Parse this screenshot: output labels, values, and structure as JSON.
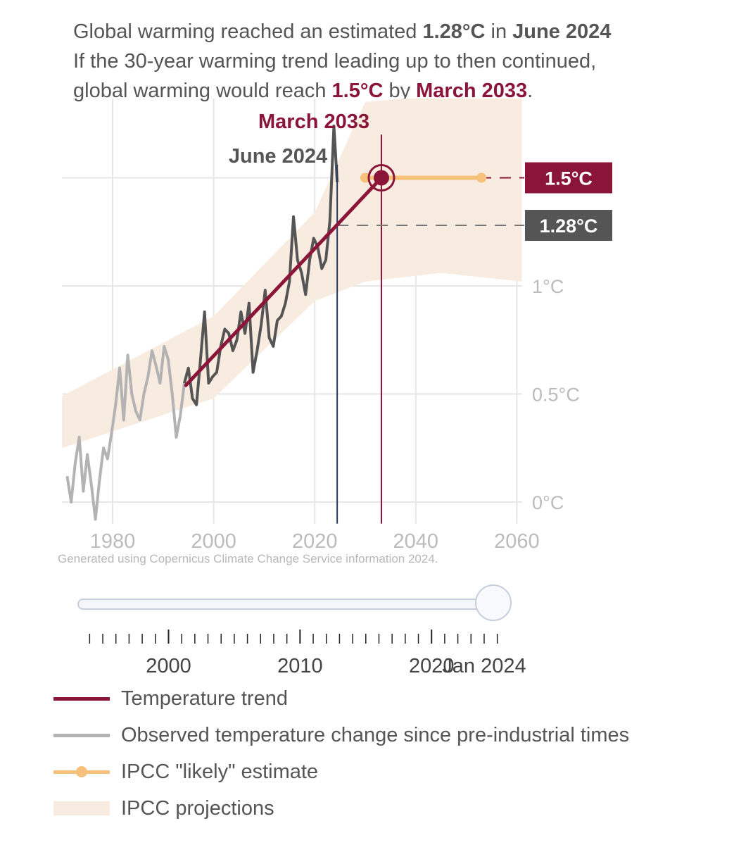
{
  "headline": {
    "l1_a": "Global warming reached an estimated ",
    "l1_b": "1.28°C",
    "l1_c": " in ",
    "l1_d": "June 2024",
    "l2": "If the 30-year warming trend leading up to then continued,",
    "l3_a": "global warming would reach ",
    "l3_b": "1.5°C",
    "l3_c": " by ",
    "l3_d": "March 2033",
    "l3_e": "."
  },
  "chart_data": {
    "type": "line",
    "title": "",
    "xlabel": "",
    "ylabel": "",
    "xlim": [
      1970,
      2061
    ],
    "ylim": [
      -0.1,
      1.92
    ],
    "grid": true,
    "x_ticks": [
      1980,
      2000,
      2020,
      2040,
      2060
    ],
    "y_ticks": [
      {
        "value": 0,
        "label": "0°C"
      },
      {
        "value": 0.5,
        "label": "0.5°C"
      },
      {
        "value": 1.0,
        "label": "1°C"
      }
    ],
    "annotations": {
      "current_date_label": "June 2024",
      "current_date_x": 2024.45,
      "target_date_label": "March 2033",
      "target_date_x": 2033.2,
      "current_value_label": "1.28°C",
      "current_value": 1.28,
      "target_value_label": "1.5°C",
      "target_value": 1.5
    },
    "series": [
      {
        "name": "Temperature trend",
        "color": "#8b1538",
        "points": [
          [
            1994.5,
            0.54
          ],
          [
            2033.2,
            1.5
          ]
        ]
      },
      {
        "name": "Observed temperature change since pre-industrial times",
        "color": "#b3b3b3",
        "recent_color": "#555555",
        "recent_from": 1994.5,
        "points": [
          [
            1971.0,
            0.12
          ],
          [
            1971.8,
            0.0
          ],
          [
            1972.6,
            0.18
          ],
          [
            1973.4,
            0.3
          ],
          [
            1974.2,
            0.05
          ],
          [
            1975.0,
            0.22
          ],
          [
            1975.8,
            0.08
          ],
          [
            1976.6,
            -0.08
          ],
          [
            1977.4,
            0.1
          ],
          [
            1978.2,
            0.25
          ],
          [
            1979.0,
            0.2
          ],
          [
            1979.8,
            0.32
          ],
          [
            1980.6,
            0.45
          ],
          [
            1981.4,
            0.62
          ],
          [
            1982.2,
            0.38
          ],
          [
            1983.0,
            0.68
          ],
          [
            1983.8,
            0.5
          ],
          [
            1984.6,
            0.42
          ],
          [
            1985.4,
            0.38
          ],
          [
            1986.2,
            0.5
          ],
          [
            1987.0,
            0.58
          ],
          [
            1987.8,
            0.7
          ],
          [
            1988.6,
            0.63
          ],
          [
            1989.4,
            0.55
          ],
          [
            1990.2,
            0.72
          ],
          [
            1991.0,
            0.66
          ],
          [
            1991.8,
            0.5
          ],
          [
            1992.6,
            0.3
          ],
          [
            1993.4,
            0.4
          ],
          [
            1994.2,
            0.55
          ],
          [
            1995.0,
            0.62
          ],
          [
            1995.8,
            0.48
          ],
          [
            1996.6,
            0.45
          ],
          [
            1997.4,
            0.66
          ],
          [
            1998.2,
            0.88
          ],
          [
            1999.0,
            0.55
          ],
          [
            1999.8,
            0.58
          ],
          [
            2000.6,
            0.6
          ],
          [
            2001.4,
            0.72
          ],
          [
            2002.2,
            0.8
          ],
          [
            2003.0,
            0.78
          ],
          [
            2003.8,
            0.7
          ],
          [
            2004.6,
            0.75
          ],
          [
            2005.4,
            0.88
          ],
          [
            2006.2,
            0.78
          ],
          [
            2007.0,
            0.92
          ],
          [
            2007.8,
            0.6
          ],
          [
            2008.6,
            0.7
          ],
          [
            2009.4,
            0.82
          ],
          [
            2010.2,
            0.98
          ],
          [
            2011.0,
            0.76
          ],
          [
            2011.8,
            0.72
          ],
          [
            2012.6,
            0.84
          ],
          [
            2013.4,
            0.86
          ],
          [
            2014.2,
            0.92
          ],
          [
            2015.0,
            1.02
          ],
          [
            2015.8,
            1.32
          ],
          [
            2016.6,
            1.12
          ],
          [
            2017.4,
            1.06
          ],
          [
            2018.2,
            0.96
          ],
          [
            2019.0,
            1.12
          ],
          [
            2019.8,
            1.22
          ],
          [
            2020.6,
            1.18
          ],
          [
            2021.4,
            1.08
          ],
          [
            2022.2,
            1.12
          ],
          [
            2023.0,
            1.3
          ],
          [
            2023.8,
            1.74
          ],
          [
            2024.45,
            1.48
          ]
        ]
      },
      {
        "name": "IPCC \"likely\" estimate",
        "color": "#f6c17a",
        "points": [
          [
            2030.0,
            1.5
          ],
          [
            2053.0,
            1.5
          ]
        ]
      },
      {
        "name": "IPCC projections",
        "color": "#f8ebe0",
        "type": "band",
        "upper": [
          [
            1970,
            0.49
          ],
          [
            2000,
            0.86
          ],
          [
            2020,
            1.34
          ],
          [
            2030,
            1.85
          ],
          [
            2061,
            1.92
          ]
        ],
        "lower": [
          [
            1970,
            0.25
          ],
          [
            2000,
            0.48
          ],
          [
            2020,
            0.93
          ],
          [
            2030,
            1.02
          ],
          [
            2045,
            1.06
          ],
          [
            2061,
            1.02
          ]
        ]
      }
    ]
  },
  "credit": "Generated using Copernicus Climate Change Service information 2024.",
  "slider": {
    "axis_labels": [
      "2000",
      "2010",
      "2020",
      "Jan 2024"
    ],
    "axis_values": [
      2000,
      2010,
      2020,
      2024
    ],
    "range": [
      1993.5,
      2025.5
    ],
    "value": 2024.5
  },
  "legend": [
    {
      "label": "Temperature trend",
      "kind": "line",
      "color": "#8b1538"
    },
    {
      "label": "Observed temperature change since pre-industrial times",
      "kind": "line",
      "color": "#b3b3b3"
    },
    {
      "label": "IPCC \"likely\" estimate",
      "kind": "dotline",
      "color": "#f6c17a"
    },
    {
      "label": "IPCC projections",
      "kind": "band",
      "color": "#f8ebe0"
    }
  ],
  "colors": {
    "trend": "#8b1538",
    "current_marker": "#253a5e",
    "value_box_dark": "#555555",
    "value_box_red": "#8b1538"
  }
}
